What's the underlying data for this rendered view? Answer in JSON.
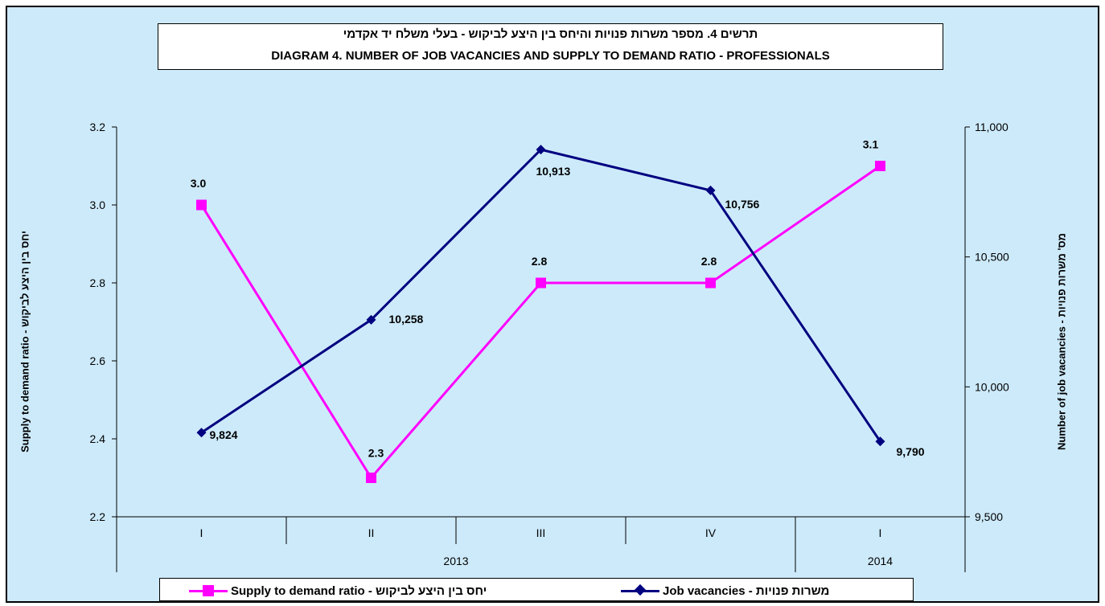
{
  "chart_data": {
    "type": "line",
    "title_he": "תרשים 4. מספר משרות פנויות והיחס בין היצע לביקוש - בעלי משלח יד אקדמי",
    "title_en": "DIAGRAM 4. NUMBER OF JOB VACANCIES AND SUPPLY TO DEMAND RATIO -  PROFESSIONALS",
    "ylabel_left": "Supply to demand ratio - יחס בין היצע לביקוש",
    "ylabel_right": "Number of job vacancies - מס' משרות פנויות",
    "categories": [
      "I",
      "II",
      "III",
      "IV",
      "I"
    ],
    "year_groups": [
      {
        "label": "2013",
        "start": 0,
        "end": 3
      },
      {
        "label": "2014",
        "start": 4,
        "end": 4
      }
    ],
    "ylim_left": [
      2.2,
      3.2
    ],
    "yticks_left": [
      "2.2",
      "2.4",
      "2.6",
      "2.8",
      "3.0",
      "3.2"
    ],
    "ylim_right": [
      9500,
      11000
    ],
    "yticks_right": [
      "9,500",
      "10,000",
      "10,500",
      "11,000"
    ],
    "series": [
      {
        "name": "Supply to demand ratio - יחס בין היצע לביקוש",
        "axis": "left",
        "color": "#ff00ff",
        "marker": "square",
        "values": [
          3.0,
          2.3,
          2.8,
          2.8,
          3.1
        ],
        "labels": [
          "3.0",
          "2.3",
          "2.8",
          "2.8",
          "3.1"
        ]
      },
      {
        "name": "Job vacancies - משרות פנויות",
        "axis": "right",
        "color": "#000080",
        "marker": "diamond",
        "values": [
          9824,
          10258,
          10913,
          10756,
          9790
        ],
        "labels": [
          "9,824",
          "10,258",
          "10,913",
          "10,756",
          "9,790"
        ]
      }
    ],
    "grid": false,
    "legend": "bottom"
  },
  "legend": {
    "ratio_label": "Supply to demand ratio - יחס בין היצע לביקוש",
    "vacancies_label": "Job vacancies - משרות פנויות"
  }
}
